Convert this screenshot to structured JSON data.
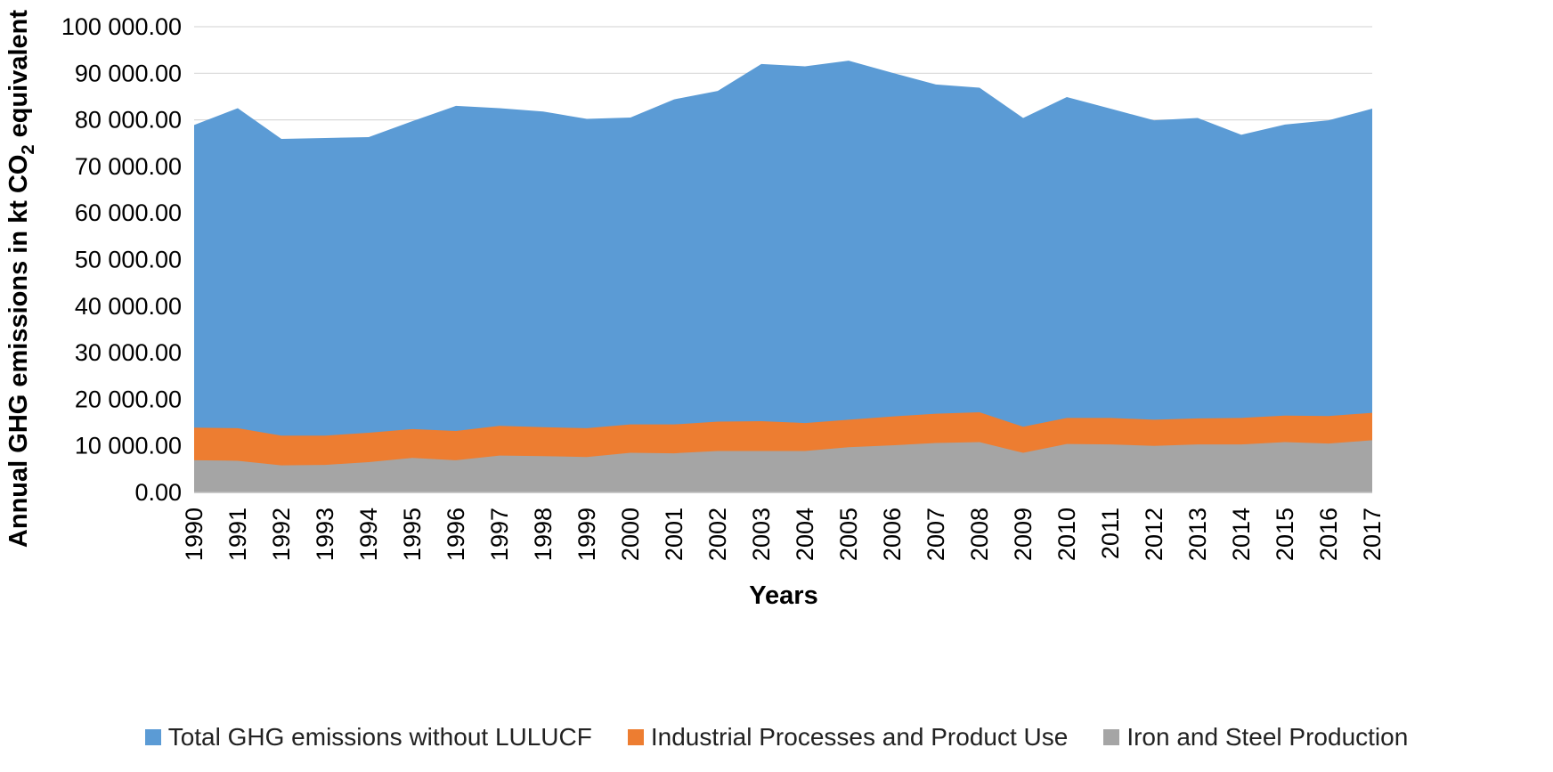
{
  "chart_data": {
    "type": "area",
    "stacked": false,
    "title": "",
    "xlabel": "Years",
    "ylabel": "Annual GHG emissions in kt CO",
    "ylabel_subscript": "2",
    "ylabel_suffix": " equivalent",
    "ylim": [
      0,
      100000
    ],
    "yticks": [
      "0.00",
      "10 000.00",
      "20 000.00",
      "30 000.00",
      "40 000.00",
      "50 000.00",
      "60 000.00",
      "70 000.00",
      "80 000.00",
      "90 000.00",
      "100 000.00"
    ],
    "grid": true,
    "legend_position": "bottom",
    "x": [
      "1990",
      "1991",
      "1992",
      "1993",
      "1994",
      "1995",
      "1996",
      "1997",
      "1998",
      "1999",
      "2000",
      "2001",
      "2002",
      "2003",
      "2004",
      "2005",
      "2006",
      "2007",
      "2008",
      "2009",
      "2010",
      "2011",
      "2012",
      "2013",
      "2014",
      "2015",
      "2016",
      "2017"
    ],
    "series": [
      {
        "name": "Total GHG emissions without LULUCF",
        "color": "#5b9bd5",
        "values": [
          78900,
          82500,
          75900,
          76100,
          76300,
          79700,
          83000,
          82500,
          81800,
          80200,
          80500,
          84400,
          86200,
          92000,
          91500,
          92700,
          90100,
          87600,
          86900,
          80400,
          84900,
          82400,
          79900,
          80400,
          76800,
          79000,
          79900,
          82400
        ]
      },
      {
        "name": "Industrial Processes and Product Use",
        "color": "#ed7d31",
        "values": [
          13900,
          13800,
          12200,
          12200,
          12800,
          13600,
          13200,
          14300,
          14000,
          13800,
          14600,
          14600,
          15200,
          15300,
          14900,
          15600,
          16300,
          16900,
          17200,
          14100,
          16000,
          16000,
          15600,
          15900,
          16000,
          16500,
          16400,
          17100
        ]
      },
      {
        "name": "Iron and Steel Production",
        "color": "#a5a5a5",
        "values": [
          6900,
          6800,
          5800,
          5900,
          6500,
          7400,
          6900,
          7900,
          7800,
          7600,
          8500,
          8400,
          8900,
          8900,
          8900,
          9700,
          10100,
          10600,
          10800,
          8500,
          10400,
          10300,
          10000,
          10300,
          10300,
          10800,
          10500,
          11200
        ]
      }
    ]
  }
}
